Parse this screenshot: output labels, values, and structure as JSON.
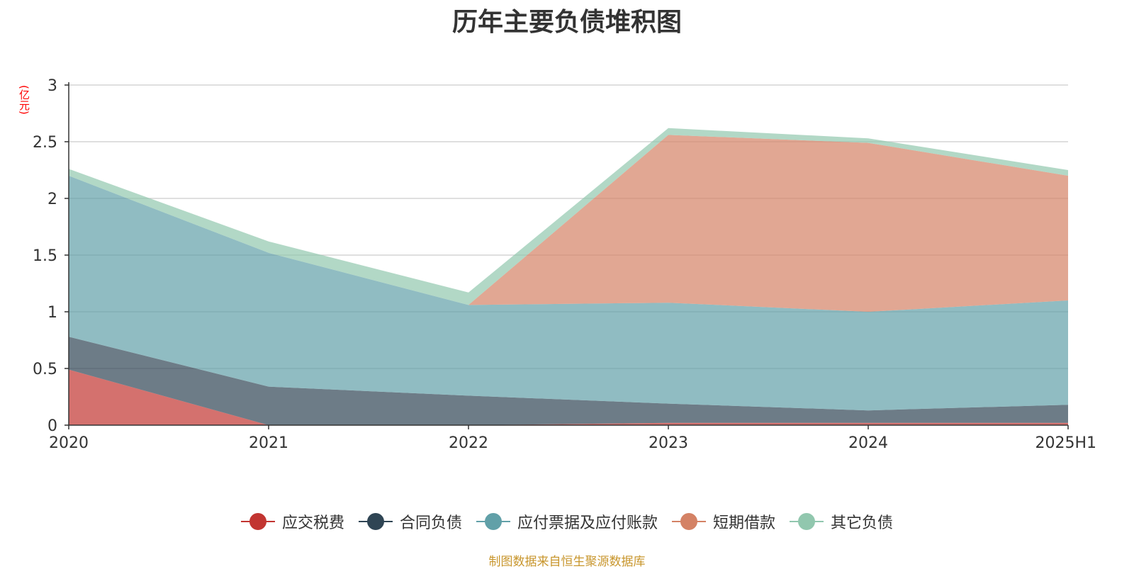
{
  "chart_data": {
    "type": "area",
    "stacked": true,
    "title": "历年主要负债堆积图",
    "unit_label": "(亿元)",
    "x": [
      "2020",
      "2021",
      "2022",
      "2023",
      "2024",
      "2025H1"
    ],
    "ylim": [
      0,
      3
    ],
    "yticks": [
      "0",
      "0.5",
      "1",
      "1.5",
      "2",
      "2.5",
      "3"
    ],
    "grid": true,
    "legend_position": "bottom",
    "series": [
      {
        "name": "应交税费",
        "color": "#c23531",
        "values": [
          0.49,
          0.0,
          0.0,
          0.02,
          0.02,
          0.02
        ]
      },
      {
        "name": "合同负债",
        "color": "#2f4554",
        "values": [
          0.29,
          0.34,
          0.26,
          0.17,
          0.11,
          0.16
        ]
      },
      {
        "name": "应付票据及应付账款",
        "color": "#61a0a8",
        "values": [
          1.42,
          1.18,
          0.8,
          0.89,
          0.87,
          0.92
        ]
      },
      {
        "name": "短期借款",
        "color": "#d48265",
        "values": [
          0.0,
          0.0,
          0.0,
          1.48,
          1.49,
          1.1
        ]
      },
      {
        "name": "其它负债",
        "color": "#91c7ae",
        "values": [
          0.06,
          0.1,
          0.11,
          0.06,
          0.04,
          0.05
        ]
      }
    ]
  },
  "source_note": "制图数据来自恒生聚源数据库",
  "colors": {
    "unit_label": "#ff0000",
    "source_note": "#c8962d",
    "grid": "#cccccc",
    "axis": "#333333"
  }
}
